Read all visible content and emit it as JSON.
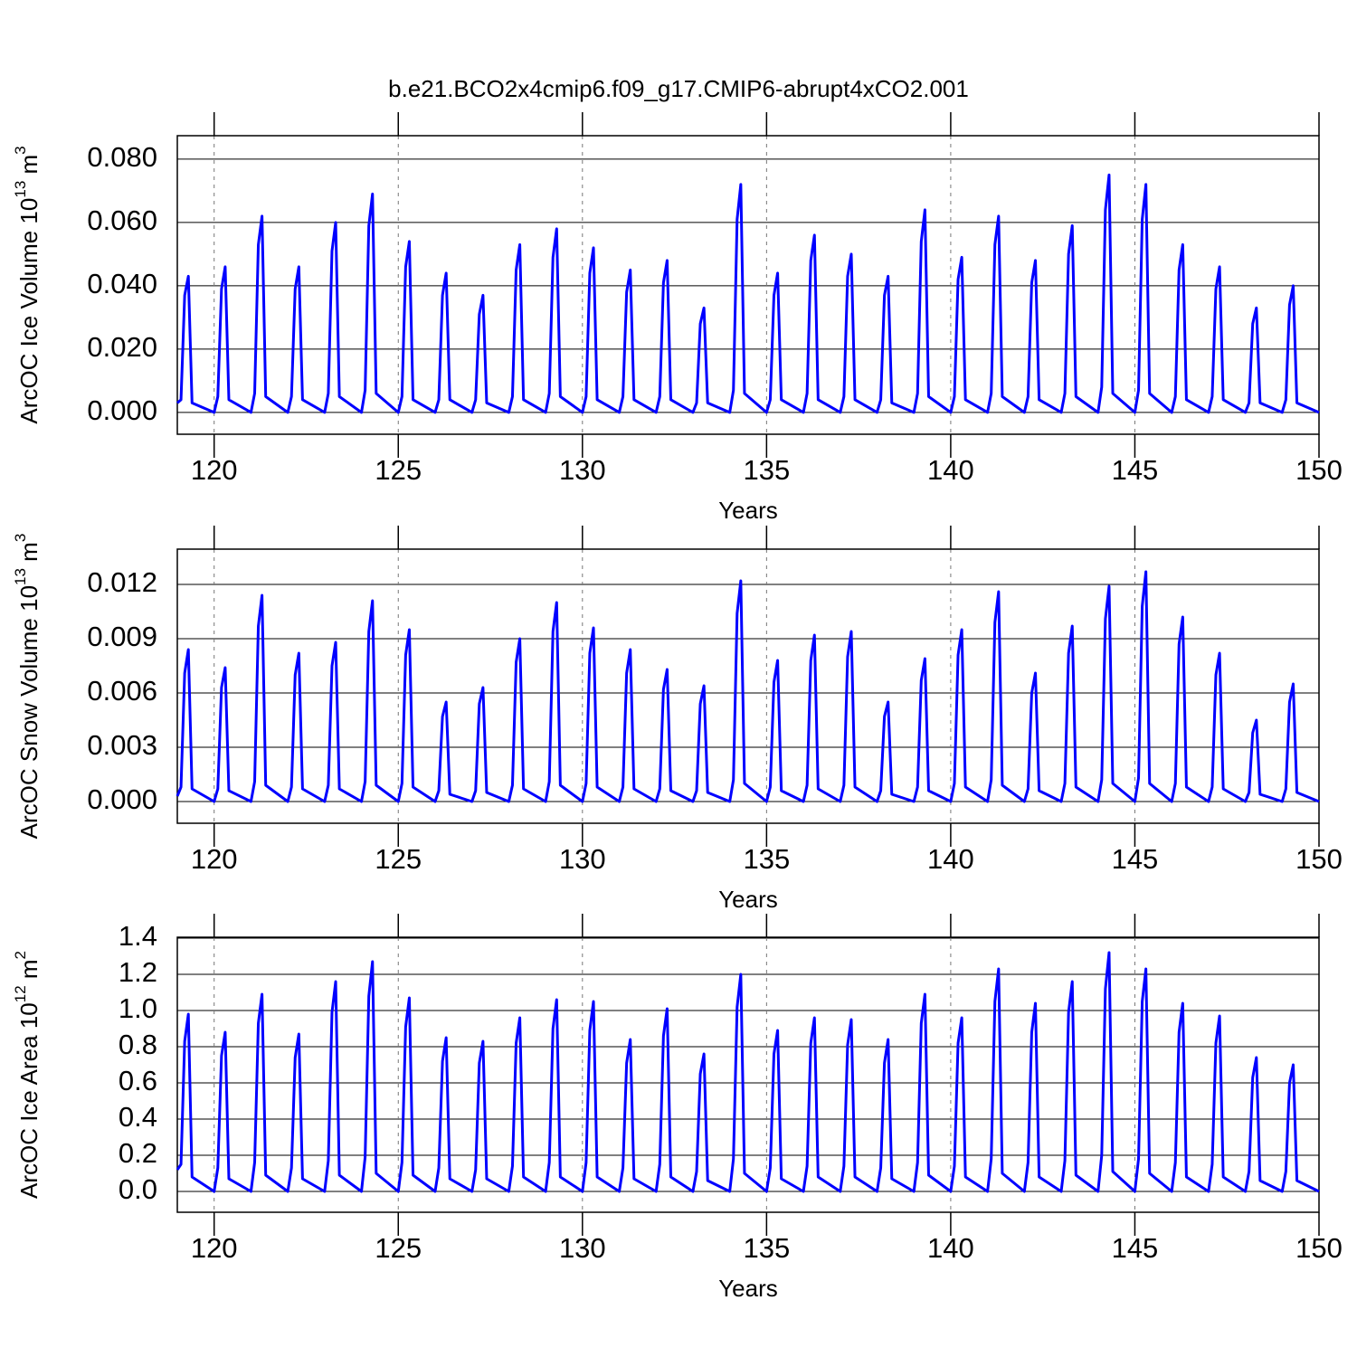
{
  "title": "b.e21.BCO2x4cmip6.f09_g17.CMIP6-abrupt4xCO2.001",
  "chart_data": [
    {
      "type": "line",
      "xlabel": "Years",
      "ylabel": {
        "text": "ArcOC Ice Volume 10",
        "sup1": "13",
        "unit": " m",
        "sup2": "3"
      },
      "color": "#0000ff",
      "grid": true,
      "xlim": [
        119,
        150
      ],
      "xticks": [
        120,
        125,
        130,
        135,
        140,
        145,
        150
      ],
      "ylim": [
        -0.0069,
        0.0874
      ],
      "yticks": [
        {
          "value": 0,
          "label": "0.000"
        },
        {
          "value": 0.02,
          "label": "0.020"
        },
        {
          "value": 0.04,
          "label": "0.040"
        },
        {
          "value": 0.06,
          "label": "0.060"
        },
        {
          "value": 0.08,
          "label": "0.080"
        }
      ],
      "x": [
        119,
        119.1,
        119.2,
        119.3,
        119.4,
        120,
        120.1,
        120.2,
        120.3,
        120.4,
        121,
        121.1,
        121.2,
        121.3,
        121.4,
        122,
        122.1,
        122.2,
        122.3,
        122.4,
        123,
        123.1,
        123.2,
        123.3,
        123.4,
        124,
        124.1,
        124.2,
        124.3,
        124.4,
        125,
        125.1,
        125.2,
        125.3,
        125.4,
        126,
        126.1,
        126.2,
        126.3,
        126.4,
        127,
        127.1,
        127.2,
        127.3,
        127.4,
        128,
        128.1,
        128.2,
        128.3,
        128.4,
        129,
        129.1,
        129.2,
        129.3,
        129.4,
        130,
        130.1,
        130.2,
        130.3,
        130.4,
        131,
        131.1,
        131.2,
        131.3,
        131.4,
        132,
        132.1,
        132.2,
        132.3,
        132.4,
        133,
        133.1,
        133.2,
        133.3,
        133.4,
        134,
        134.1,
        134.2,
        134.3,
        134.4,
        135,
        135.1,
        135.2,
        135.3,
        135.4,
        136,
        136.1,
        136.2,
        136.3,
        136.4,
        137,
        137.1,
        137.2,
        137.3,
        137.4,
        138,
        138.1,
        138.2,
        138.3,
        138.4,
        139,
        139.1,
        139.2,
        139.3,
        139.4,
        140,
        140.1,
        140.2,
        140.3,
        140.4,
        141,
        141.1,
        141.2,
        141.3,
        141.4,
        142,
        142.1,
        142.2,
        142.3,
        142.4,
        143,
        143.1,
        143.2,
        143.3,
        143.4,
        144,
        144.1,
        144.2,
        144.3,
        144.4,
        145,
        145.1,
        145.2,
        145.3,
        145.4,
        146,
        146.1,
        146.2,
        146.3,
        146.4,
        147,
        147.1,
        147.2,
        147.3,
        147.4,
        148,
        148.1,
        148.2,
        148.3,
        148.4,
        149,
        149.1,
        149.2,
        149.3,
        149.4,
        150
      ],
      "values": [
        0.003,
        0.004,
        0.037,
        0.043,
        0.003,
        0,
        0.005,
        0.039,
        0.046,
        0.004,
        0,
        0.006,
        0.053,
        0.062,
        0.005,
        0,
        0.005,
        0.039,
        0.046,
        0.004,
        0,
        0.006,
        0.051,
        0.06,
        0.005,
        0,
        0.007,
        0.059,
        0.069,
        0.006,
        0,
        0.005,
        0.046,
        0.054,
        0.004,
        0,
        0.004,
        0.037,
        0.044,
        0.004,
        0,
        0.004,
        0.031,
        0.037,
        0.003,
        0,
        0.005,
        0.045,
        0.053,
        0.004,
        0,
        0.006,
        0.049,
        0.058,
        0.005,
        0,
        0.005,
        0.044,
        0.052,
        0.004,
        0,
        0.005,
        0.038,
        0.045,
        0.004,
        0,
        0.005,
        0.041,
        0.048,
        0.004,
        0,
        0.003,
        0.028,
        0.033,
        0.003,
        0,
        0.007,
        0.061,
        0.072,
        0.006,
        0,
        0.004,
        0.037,
        0.044,
        0.004,
        0,
        0.006,
        0.048,
        0.056,
        0.004,
        0,
        0.005,
        0.043,
        0.05,
        0.004,
        0,
        0.004,
        0.037,
        0.043,
        0.003,
        0,
        0.006,
        0.054,
        0.064,
        0.005,
        0,
        0.005,
        0.042,
        0.049,
        0.004,
        0,
        0.006,
        0.053,
        0.062,
        0.005,
        0,
        0.005,
        0.041,
        0.048,
        0.004,
        0,
        0.006,
        0.05,
        0.059,
        0.005,
        0,
        0.008,
        0.064,
        0.075,
        0.006,
        0,
        0.007,
        0.061,
        0.072,
        0.006,
        0,
        0.005,
        0.045,
        0.053,
        0.004,
        0,
        0.005,
        0.039,
        0.046,
        0.004,
        0,
        0.003,
        0.028,
        0.033,
        0.003,
        0,
        0.004,
        0.034,
        0.04,
        0.003,
        0
      ]
    },
    {
      "type": "line",
      "xlabel": "Years",
      "ylabel": {
        "text": "ArcOC Snow Volume 10",
        "sup1": "13",
        "unit": " m",
        "sup2": "3"
      },
      "color": "#0000ff",
      "grid": true,
      "xlim": [
        119,
        150
      ],
      "xticks": [
        120,
        125,
        130,
        135,
        140,
        145,
        150
      ],
      "ylim": [
        -0.0012,
        0.01395
      ],
      "yticks": [
        {
          "value": 0,
          "label": "0.000"
        },
        0.003,
        0.006,
        0.009,
        0.012
      ],
      "x": [
        119,
        119.1,
        119.2,
        119.3,
        119.4,
        120,
        120.1,
        120.2,
        120.3,
        120.4,
        121,
        121.1,
        121.2,
        121.3,
        121.4,
        122,
        122.1,
        122.2,
        122.3,
        122.4,
        123,
        123.1,
        123.2,
        123.3,
        123.4,
        124,
        124.1,
        124.2,
        124.3,
        124.4,
        125,
        125.1,
        125.2,
        125.3,
        125.4,
        126,
        126.1,
        126.2,
        126.3,
        126.4,
        127,
        127.1,
        127.2,
        127.3,
        127.4,
        128,
        128.1,
        128.2,
        128.3,
        128.4,
        129,
        129.1,
        129.2,
        129.3,
        129.4,
        130,
        130.1,
        130.2,
        130.3,
        130.4,
        131,
        131.1,
        131.2,
        131.3,
        131.4,
        132,
        132.1,
        132.2,
        132.3,
        132.4,
        133,
        133.1,
        133.2,
        133.3,
        133.4,
        134,
        134.1,
        134.2,
        134.3,
        134.4,
        135,
        135.1,
        135.2,
        135.3,
        135.4,
        136,
        136.1,
        136.2,
        136.3,
        136.4,
        137,
        137.1,
        137.2,
        137.3,
        137.4,
        138,
        138.1,
        138.2,
        138.3,
        138.4,
        139,
        139.1,
        139.2,
        139.3,
        139.4,
        140,
        140.1,
        140.2,
        140.3,
        140.4,
        141,
        141.1,
        141.2,
        141.3,
        141.4,
        142,
        142.1,
        142.2,
        142.3,
        142.4,
        143,
        143.1,
        143.2,
        143.3,
        143.4,
        144,
        144.1,
        144.2,
        144.3,
        144.4,
        145,
        145.1,
        145.2,
        145.3,
        145.4,
        146,
        146.1,
        146.2,
        146.3,
        146.4,
        147,
        147.1,
        147.2,
        147.3,
        147.4,
        148,
        148.1,
        148.2,
        148.3,
        148.4,
        149,
        149.1,
        149.2,
        149.3,
        149.4,
        150
      ],
      "values": [
        0.0003,
        0.0008,
        0.0071,
        0.0084,
        0.0007,
        0,
        0.0007,
        0.0063,
        0.0074,
        0.0006,
        0,
        0.0011,
        0.0097,
        0.0114,
        0.0009,
        0,
        0.0008,
        0.007,
        0.0082,
        0.0007,
        0,
        0.0009,
        0.0075,
        0.0088,
        0.0007,
        0,
        0.0011,
        0.0094,
        0.0111,
        0.0009,
        0,
        0.001,
        0.0081,
        0.0095,
        0.0008,
        0,
        0.0006,
        0.0047,
        0.0055,
        0.0004,
        0,
        0.0006,
        0.0054,
        0.0063,
        0.0005,
        0,
        0.0009,
        0.0077,
        0.009,
        0.0007,
        0,
        0.0011,
        0.0094,
        0.011,
        0.0009,
        0,
        0.001,
        0.0082,
        0.0096,
        0.0008,
        0,
        0.0008,
        0.0071,
        0.0084,
        0.0007,
        0,
        0.0007,
        0.0062,
        0.0073,
        0.0006,
        0,
        0.0006,
        0.0054,
        0.0064,
        0.0005,
        0,
        0.0012,
        0.0104,
        0.0122,
        0.001,
        0,
        0.0008,
        0.0066,
        0.0078,
        0.0006,
        0,
        0.0009,
        0.0078,
        0.0092,
        0.0007,
        0,
        0.0009,
        0.008,
        0.0094,
        0.0008,
        0,
        0.0006,
        0.0047,
        0.0055,
        0.0004,
        0,
        0.0008,
        0.0067,
        0.0079,
        0.0006,
        0,
        0.001,
        0.0081,
        0.0095,
        0.0008,
        0,
        0.0012,
        0.0099,
        0.0116,
        0.0009,
        0,
        0.0007,
        0.006,
        0.0071,
        0.0006,
        0,
        0.001,
        0.0082,
        0.0097,
        0.0008,
        0,
        0.0012,
        0.0101,
        0.0119,
        0.001,
        0,
        0.0013,
        0.0108,
        0.0127,
        0.001,
        0,
        0.001,
        0.0087,
        0.0102,
        0.0008,
        0,
        0.0008,
        0.007,
        0.0082,
        0.0007,
        0,
        0.0005,
        0.0038,
        0.0045,
        0.0004,
        0,
        0.0007,
        0.0055,
        0.0065,
        0.0005,
        0
      ]
    },
    {
      "type": "line",
      "xlabel": "Years",
      "ylabel": {
        "text": "ArcOC Ice Area 10",
        "sup1": "12",
        "unit": " m",
        "sup2": "2"
      },
      "color": "#0000ff",
      "grid": true,
      "xlim": [
        119,
        150
      ],
      "xticks": [
        120,
        125,
        130,
        135,
        140,
        145,
        150
      ],
      "ylim": [
        -0.115,
        1.405
      ],
      "yticks": [
        {
          "value": 0,
          "label": "0.0"
        },
        0.2,
        0.4,
        0.6,
        0.8,
        {
          "value": 1,
          "label": "1.0"
        },
        1.2,
        1.4
      ],
      "x": [
        119,
        119.1,
        119.2,
        119.3,
        119.4,
        120,
        120.1,
        120.2,
        120.3,
        120.4,
        121,
        121.1,
        121.2,
        121.3,
        121.4,
        122,
        122.1,
        122.2,
        122.3,
        122.4,
        123,
        123.1,
        123.2,
        123.3,
        123.4,
        124,
        124.1,
        124.2,
        124.3,
        124.4,
        125,
        125.1,
        125.2,
        125.3,
        125.4,
        126,
        126.1,
        126.2,
        126.3,
        126.4,
        127,
        127.1,
        127.2,
        127.3,
        127.4,
        128,
        128.1,
        128.2,
        128.3,
        128.4,
        129,
        129.1,
        129.2,
        129.3,
        129.4,
        130,
        130.1,
        130.2,
        130.3,
        130.4,
        131,
        131.1,
        131.2,
        131.3,
        131.4,
        132,
        132.1,
        132.2,
        132.3,
        132.4,
        133,
        133.1,
        133.2,
        133.3,
        133.4,
        134,
        134.1,
        134.2,
        134.3,
        134.4,
        135,
        135.1,
        135.2,
        135.3,
        135.4,
        136,
        136.1,
        136.2,
        136.3,
        136.4,
        137,
        137.1,
        137.2,
        137.3,
        137.4,
        138,
        138.1,
        138.2,
        138.3,
        138.4,
        139,
        139.1,
        139.2,
        139.3,
        139.4,
        140,
        140.1,
        140.2,
        140.3,
        140.4,
        141,
        141.1,
        141.2,
        141.3,
        141.4,
        142,
        142.1,
        142.2,
        142.3,
        142.4,
        143,
        143.1,
        143.2,
        143.3,
        143.4,
        144,
        144.1,
        144.2,
        144.3,
        144.4,
        145,
        145.1,
        145.2,
        145.3,
        145.4,
        146,
        146.1,
        146.2,
        146.3,
        146.4,
        147,
        147.1,
        147.2,
        147.3,
        147.4,
        148,
        148.1,
        148.2,
        148.3,
        148.4,
        149,
        149.1,
        149.2,
        149.3,
        149.4,
        150
      ],
      "values": [
        0.12,
        0.15,
        0.83,
        0.98,
        0.08,
        0,
        0.13,
        0.75,
        0.88,
        0.07,
        0,
        0.16,
        0.93,
        1.09,
        0.09,
        0,
        0.13,
        0.74,
        0.87,
        0.07,
        0,
        0.17,
        0.99,
        1.16,
        0.09,
        0,
        0.19,
        1.08,
        1.27,
        0.1,
        0,
        0.16,
        0.91,
        1.07,
        0.09,
        0,
        0.13,
        0.72,
        0.85,
        0.07,
        0,
        0.12,
        0.71,
        0.83,
        0.07,
        0,
        0.14,
        0.82,
        0.96,
        0.08,
        0,
        0.16,
        0.9,
        1.06,
        0.08,
        0,
        0.16,
        0.89,
        1.05,
        0.08,
        0,
        0.13,
        0.71,
        0.84,
        0.07,
        0,
        0.15,
        0.86,
        1.01,
        0.08,
        0,
        0.11,
        0.65,
        0.76,
        0.06,
        0,
        0.18,
        1.02,
        1.2,
        0.1,
        0,
        0.13,
        0.76,
        0.89,
        0.07,
        0,
        0.14,
        0.82,
        0.96,
        0.08,
        0,
        0.14,
        0.81,
        0.95,
        0.08,
        0,
        0.13,
        0.71,
        0.84,
        0.07,
        0,
        0.16,
        0.93,
        1.09,
        0.09,
        0,
        0.14,
        0.82,
        0.96,
        0.08,
        0,
        0.18,
        1.05,
        1.23,
        0.1,
        0,
        0.16,
        0.88,
        1.04,
        0.08,
        0,
        0.17,
        0.99,
        1.16,
        0.09,
        0,
        0.2,
        1.12,
        1.32,
        0.11,
        0,
        0.18,
        1.05,
        1.23,
        0.1,
        0,
        0.16,
        0.88,
        1.04,
        0.08,
        0,
        0.15,
        0.82,
        0.97,
        0.08,
        0,
        0.11,
        0.63,
        0.74,
        0.06,
        0,
        0.11,
        0.6,
        0.7,
        0.06,
        0
      ]
    }
  ]
}
